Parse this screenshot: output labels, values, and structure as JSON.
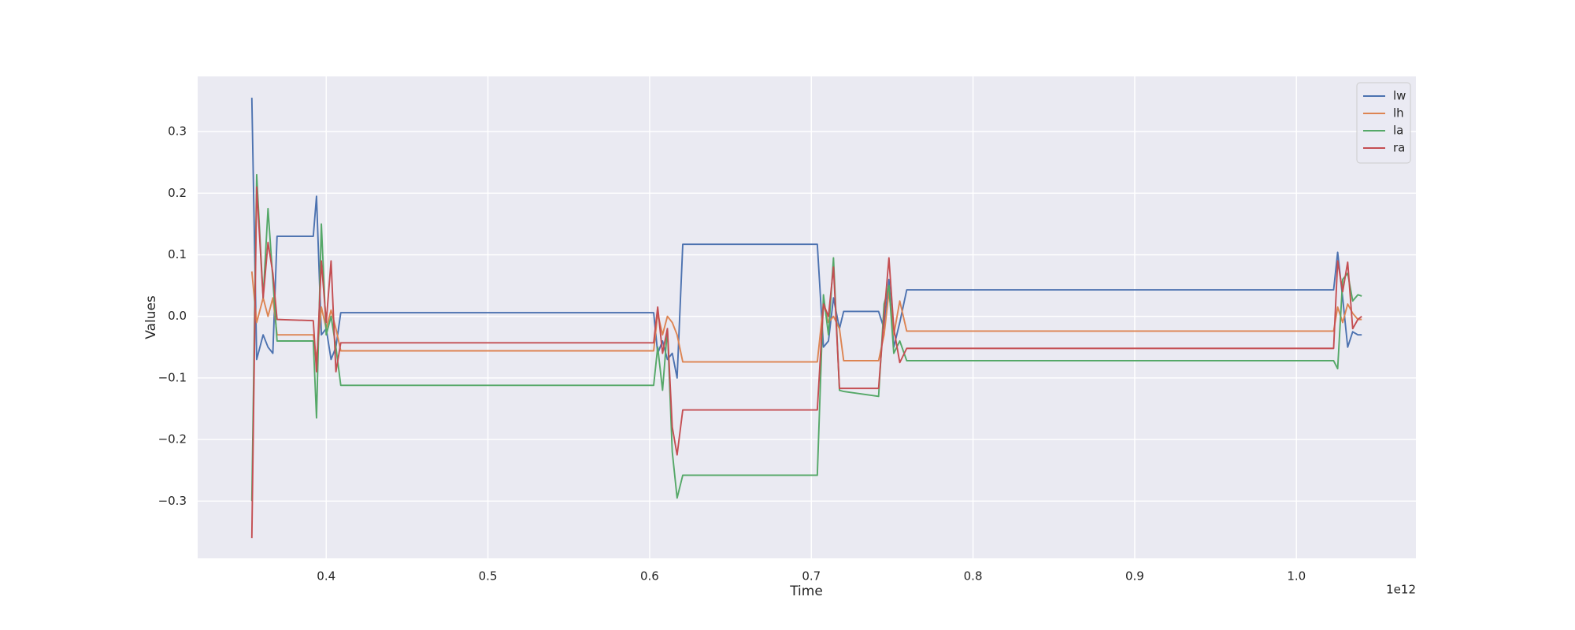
{
  "chart_data": {
    "type": "line",
    "xlabel": "Time",
    "ylabel": "Values",
    "x_offset_text": "1e12",
    "x": [
      0.354,
      0.357,
      0.361,
      0.364,
      0.367,
      0.3696,
      0.392,
      0.394,
      0.397,
      0.4,
      0.403,
      0.406,
      0.409,
      0.6025,
      0.605,
      0.608,
      0.611,
      0.614,
      0.617,
      0.6205,
      0.7037,
      0.7075,
      0.7106,
      0.7137,
      0.7174,
      0.72,
      0.7416,
      0.745,
      0.748,
      0.751,
      0.7547,
      0.759,
      1.023,
      1.0255,
      1.0286,
      1.0317,
      1.0348,
      1.038,
      1.0404
    ],
    "series": [
      {
        "name": "lw",
        "color": "#4c72b0",
        "values": [
          0.355,
          -0.07,
          -0.03,
          -0.05,
          -0.06,
          0.13,
          0.13,
          0.195,
          -0.03,
          -0.02,
          -0.07,
          -0.05,
          0.006,
          0.006,
          -0.06,
          -0.04,
          -0.07,
          -0.06,
          -0.1,
          0.117,
          0.117,
          -0.05,
          -0.04,
          0.03,
          -0.02,
          0.008,
          0.008,
          -0.02,
          0.06,
          -0.05,
          -0.01,
          0.043,
          0.043,
          0.104,
          0.03,
          -0.05,
          -0.025,
          -0.03,
          -0.03
        ]
      },
      {
        "name": "lh",
        "color": "#dd8452",
        "values": [
          0.073,
          -0.01,
          0.03,
          0.0,
          0.03,
          -0.03,
          -0.03,
          -0.07,
          0.015,
          -0.02,
          0.01,
          -0.02,
          -0.056,
          -0.056,
          0.005,
          -0.03,
          0.0,
          -0.01,
          -0.03,
          -0.074,
          -0.074,
          0.02,
          -0.01,
          0.0,
          -0.02,
          -0.072,
          -0.072,
          -0.03,
          0.04,
          -0.03,
          0.025,
          -0.024,
          -0.024,
          0.015,
          -0.01,
          0.02,
          0.005,
          -0.005,
          -0.005
        ]
      },
      {
        "name": "la",
        "color": "#55a868",
        "values": [
          -0.3,
          0.23,
          0.03,
          0.175,
          0.06,
          -0.04,
          -0.04,
          -0.165,
          0.15,
          -0.03,
          0.0,
          -0.05,
          -0.112,
          -0.112,
          -0.05,
          -0.12,
          -0.02,
          -0.22,
          -0.295,
          -0.258,
          -0.258,
          0.035,
          -0.03,
          0.095,
          -0.12,
          -0.122,
          -0.13,
          0.02,
          0.05,
          -0.06,
          -0.04,
          -0.072,
          -0.072,
          -0.085,
          0.06,
          0.07,
          0.025,
          0.035,
          0.033
        ]
      },
      {
        "name": "ra",
        "color": "#c44e52",
        "values": [
          -0.36,
          0.21,
          0.03,
          0.12,
          0.07,
          -0.005,
          -0.007,
          -0.09,
          0.09,
          -0.01,
          0.09,
          -0.09,
          -0.043,
          -0.043,
          0.015,
          -0.06,
          -0.02,
          -0.18,
          -0.225,
          -0.152,
          -0.152,
          0.02,
          0.0,
          0.08,
          -0.117,
          -0.117,
          -0.117,
          0.0,
          0.095,
          -0.02,
          -0.075,
          -0.052,
          -0.052,
          0.09,
          0.04,
          0.088,
          -0.02,
          -0.005,
          0.0
        ]
      }
    ],
    "xlim": [
      0.3205,
      1.0739
    ],
    "ylim": [
      -0.393,
      0.3897
    ],
    "xticks": [
      0.4,
      0.5,
      0.6,
      0.7,
      0.8,
      0.9,
      {
        "value": 1.0,
        "label": "1.0"
      }
    ],
    "yticks": [
      {
        "value": -0.3,
        "label": "−0.3"
      },
      {
        "value": -0.2,
        "label": "−0.2"
      },
      {
        "value": -0.1,
        "label": "−0.1"
      },
      {
        "value": 0,
        "label": "0.0"
      },
      0.1,
      0.2,
      0.3
    ],
    "grid": true,
    "legend": "upper right"
  }
}
